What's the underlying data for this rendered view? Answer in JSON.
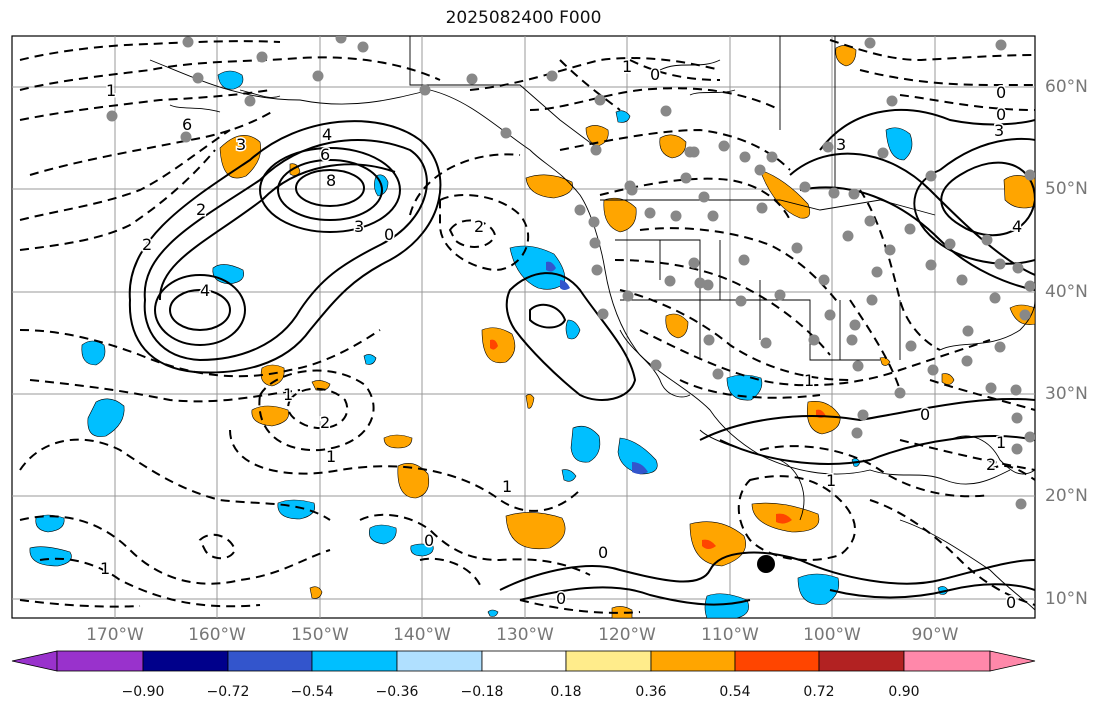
{
  "title": "2025082400 F000",
  "lat_labels": [
    "60°N",
    "50°N",
    "40°N",
    "30°N",
    "20°N",
    "10°N"
  ],
  "lon_labels": [
    "170°W",
    "160°W",
    "150°W",
    "140°W",
    "130°W",
    "120°W",
    "110°W",
    "100°W",
    "90°W"
  ],
  "colorbar": {
    "ticks": [
      "−0.90",
      "−0.72",
      "−0.54",
      "−0.36",
      "−0.18",
      "0.18",
      "0.36",
      "0.54",
      "0.72",
      "0.90"
    ],
    "colors": [
      "#9932CC",
      "#00008B",
      "#3355CC",
      "#00BFFF",
      "#B0E0FF",
      "#FFFFFF",
      "#FFEC8B",
      "#FFA500",
      "#FF4500",
      "#B22222",
      "#FF88AA"
    ]
  },
  "contour_labels": [
    "2",
    "4",
    "6",
    "8",
    "3",
    "3",
    "2",
    "4",
    "6",
    "0",
    "2",
    "2",
    "1",
    "1",
    "0",
    "1",
    "0",
    "0",
    "1",
    "1",
    "1",
    "2",
    "1",
    "0",
    "0",
    "0",
    "0",
    "3",
    "4",
    "3",
    "0",
    "1",
    "1"
  ],
  "marker": "filled-black-circle"
}
